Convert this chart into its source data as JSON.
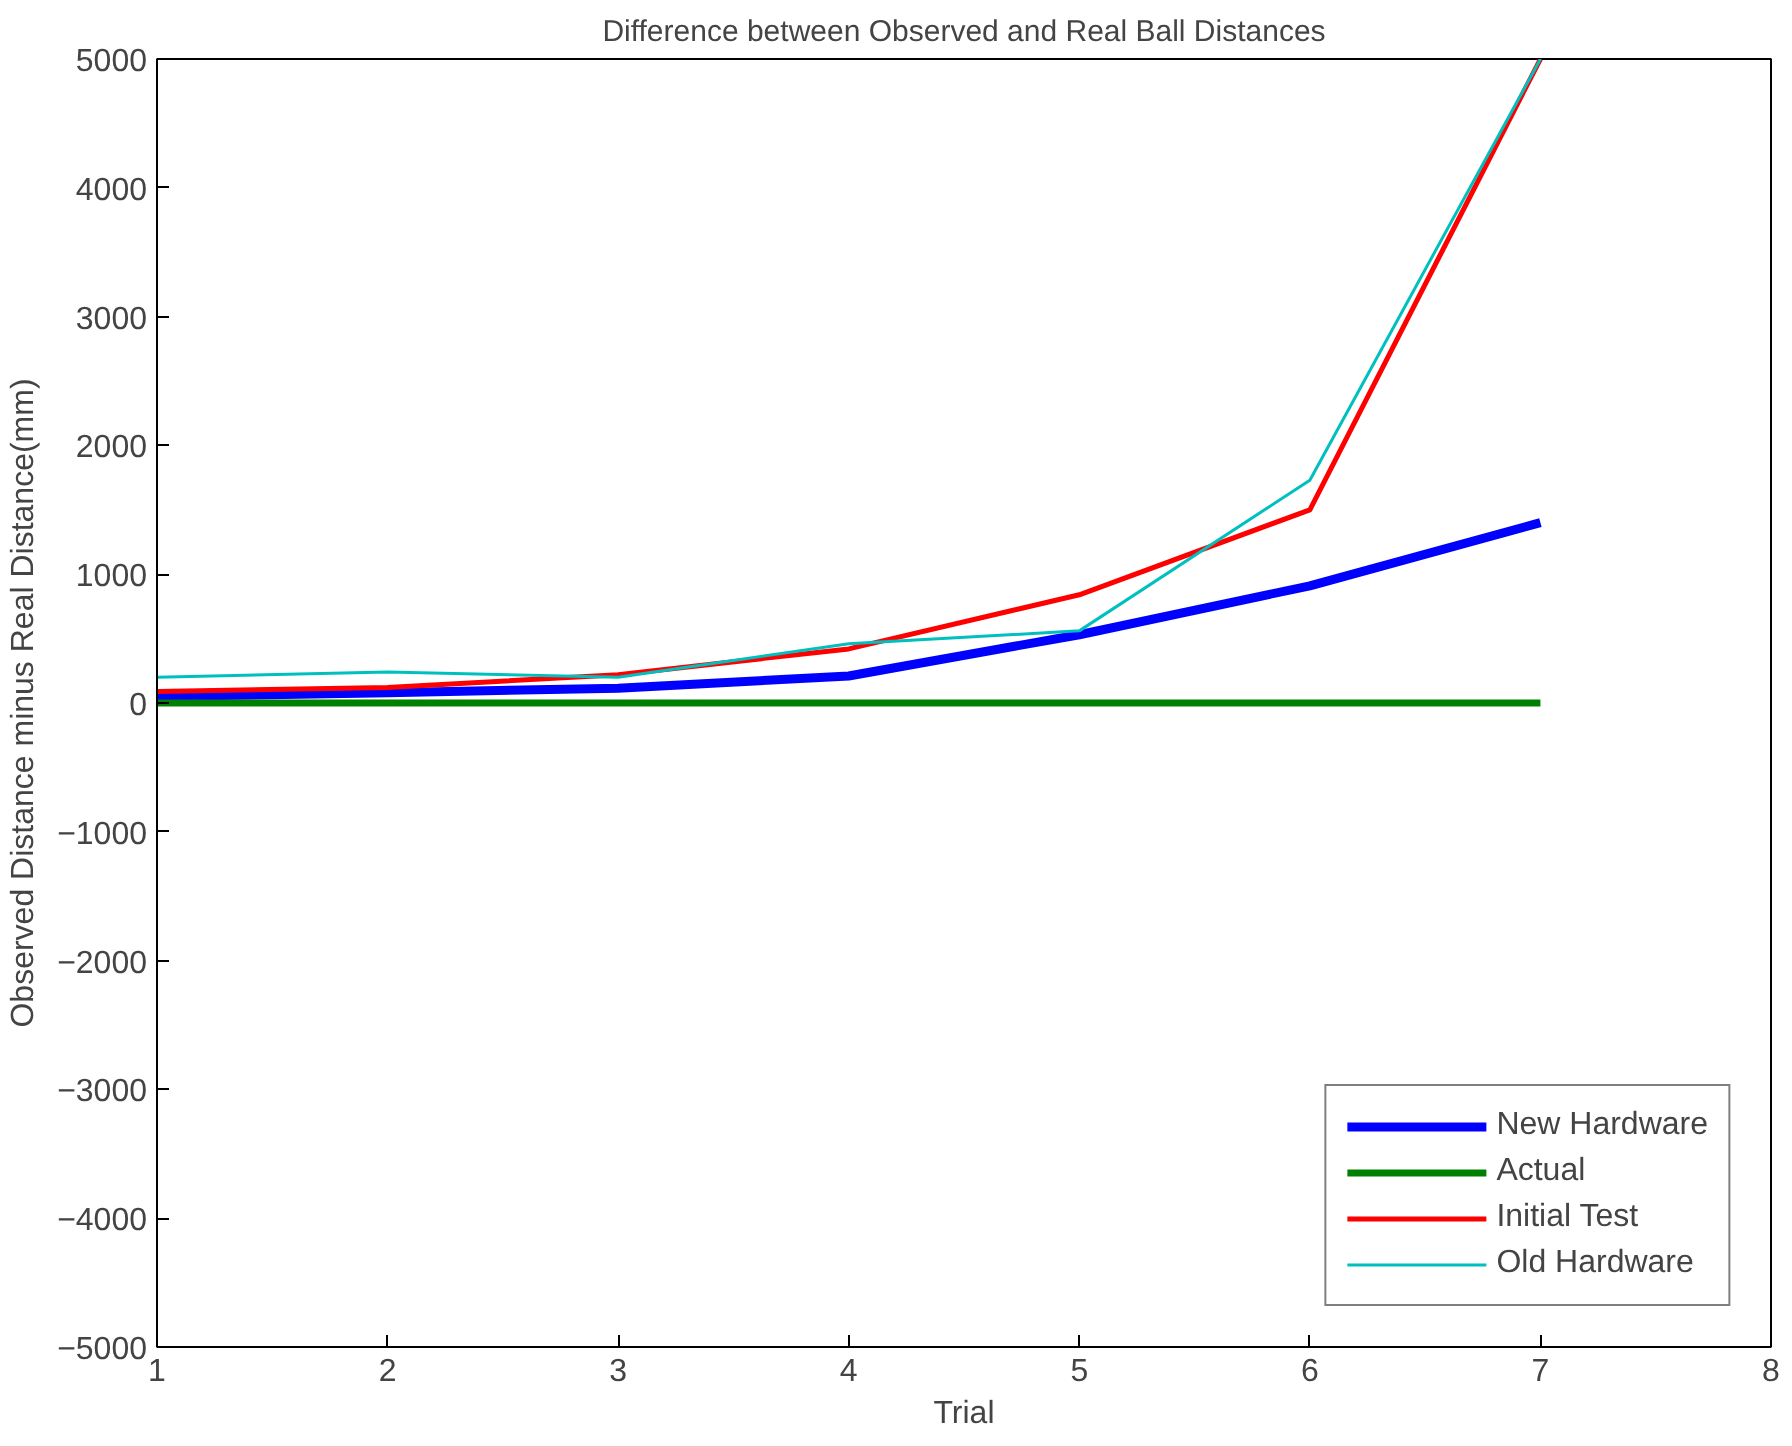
{
  "chart_data": {
    "type": "line",
    "title": "Difference between Observed and Real Ball Distances",
    "xlabel": "Trial",
    "ylabel": "Observed Distance minus Real Distance(mm)",
    "x": [
      1,
      2,
      3,
      4,
      5,
      6,
      7
    ],
    "series": [
      {
        "name": "New Hardware",
        "color": "#0000ff",
        "values": [
          50,
          80,
          115,
          210,
          530,
          910,
          1400
        ]
      },
      {
        "name": "Actual",
        "color": "#008000",
        "values": [
          0,
          0,
          0,
          0,
          0,
          0,
          0
        ]
      },
      {
        "name": "Initial Test",
        "color": "#ff0000",
        "values": [
          90,
          120,
          220,
          420,
          840,
          1500,
          5000
        ]
      },
      {
        "name": "Old Hardware",
        "color": "#00bfbf",
        "values": [
          200,
          240,
          200,
          460,
          560,
          1730,
          5000
        ]
      }
    ],
    "xlim": [
      1,
      8
    ],
    "xticks": [
      1,
      2,
      3,
      4,
      5,
      6,
      7,
      8
    ],
    "ylim": [
      -5000,
      5000
    ],
    "yticks": [
      -5000,
      -4000,
      -3000,
      -2000,
      -1000,
      0,
      1000,
      2000,
      3000,
      4000,
      5000
    ],
    "grid": false,
    "legend": "bottom right",
    "line_style": "solid",
    "marker": "none"
  }
}
